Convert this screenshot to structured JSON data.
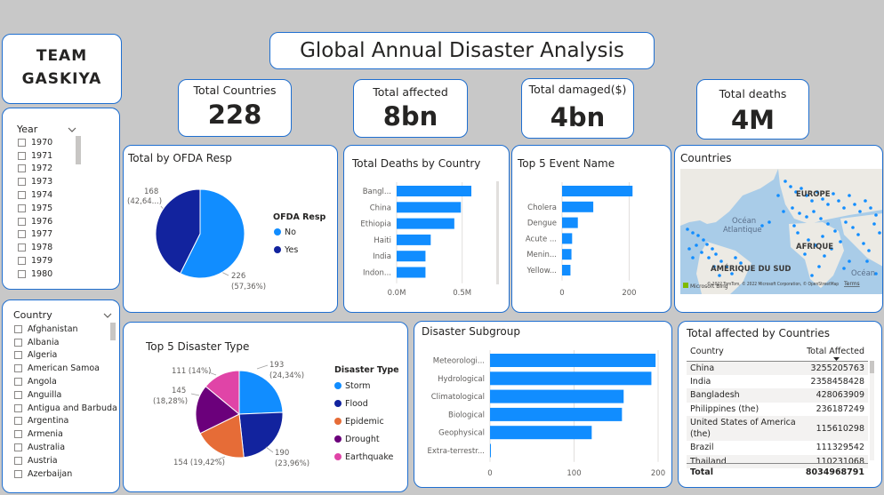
{
  "team": {
    "line1": "TEAM",
    "line2": "GASKIYA"
  },
  "title": "Global Annual Disaster Analysis",
  "kpis": [
    {
      "label": "Total Countries",
      "value": "228"
    },
    {
      "label": "Total affected",
      "value": "8bn"
    },
    {
      "label": "Total damaged($)",
      "value": "4bn"
    },
    {
      "label": "Total deaths",
      "value": "4M"
    }
  ],
  "year_slicer": {
    "header": "Year",
    "items": [
      "1970",
      "1971",
      "1972",
      "1973",
      "1974",
      "1975",
      "1976",
      "1977",
      "1978",
      "1979",
      "1980"
    ]
  },
  "country_slicer": {
    "header": "Country",
    "items": [
      "Afghanistan",
      "Albania",
      "Algeria",
      "American Samoa",
      "Angola",
      "Anguilla",
      "Antigua and Barbuda",
      "Argentina",
      "Armenia",
      "Australia",
      "Austria",
      "Azerbaijan"
    ]
  },
  "colors": {
    "accent": "#118dff",
    "dark_blue": "#12239e",
    "orange": "#e66c37",
    "purple": "#6b007b",
    "pink": "#e044a7",
    "border": "#1f6fd0"
  },
  "ofda": {
    "title": "Total by OFDA Resp",
    "legend_title": "OFDA Resp",
    "legend": [
      "No",
      "Yes"
    ],
    "label_yes_1": "168",
    "label_yes_2": "(42,64...)",
    "label_no_1": "226",
    "label_no_2": "(57,36%)"
  },
  "deaths": {
    "title": "Total Deaths by Country",
    "axis": [
      "0.0M",
      "0.5M"
    ]
  },
  "top5event": {
    "title": "Top 5 Event Name",
    "axis": [
      "0",
      "200"
    ]
  },
  "map": {
    "title": "Countries",
    "labels": {
      "europe": "EUROPE",
      "ocean": "Océan",
      "atlantique": "Atlantique",
      "afrique": "AFRIQUE",
      "amerique": "AMÉRIQUE DU SUD",
      "ocean2": "Océan"
    },
    "bing": "Microsoft Bing",
    "credit": "© 2022 TomTom, © 2022 Microsoft Corporation, © OpenStreetMap",
    "terms": "Terms"
  },
  "disaster_type": {
    "title": "Top 5 Disaster Type",
    "legend_title": "Disaster Type",
    "legend": [
      "Storm",
      "Flood",
      "Epidemic",
      "Drought",
      "Earthquake"
    ],
    "labels": [
      "193",
      "(24,34%)",
      "190",
      "(23,96%)",
      "154 (19,42%)",
      "145",
      "(18,28%)",
      "111 (14%)"
    ]
  },
  "subgroup": {
    "title": "Disaster Subgroup",
    "axis": [
      "0",
      "100",
      "200"
    ]
  },
  "affected_table": {
    "title": "Total affected by Countries",
    "col1": "Country",
    "col2": "Total Affected",
    "rows": [
      {
        "country": "China",
        "value": "3255205763"
      },
      {
        "country": "India",
        "value": "2358458428"
      },
      {
        "country": "Bangladesh",
        "value": "428063909"
      },
      {
        "country": "Philippines (the)",
        "value": "236187249"
      },
      {
        "country": "United States of America",
        "country2": "(the)",
        "value": "115610298"
      },
      {
        "country": "Brazil",
        "value": "111329542"
      },
      {
        "country": "Thailand",
        "value": "110231068"
      }
    ],
    "total_label": "Total",
    "total_value": "8034968791"
  },
  "chart_data": [
    {
      "type": "pie",
      "title": "Total by OFDA Resp",
      "categories": [
        "No",
        "Yes"
      ],
      "values": [
        226,
        168
      ]
    },
    {
      "type": "bar",
      "title": "Total Deaths by Country",
      "categories": [
        "Bangl...",
        "China",
        "Ethiopia",
        "Haiti",
        "India",
        "Indon..."
      ],
      "values": [
        0.57,
        0.49,
        0.44,
        0.26,
        0.22,
        0.22
      ],
      "xlabel": "",
      "ylabel": ""
    },
    {
      "type": "bar",
      "title": "Top 5 Event Name",
      "categories": [
        "",
        "Cholera",
        "Dengue",
        "Acute ...",
        "Menin...",
        "Yellow..."
      ],
      "values": [
        210,
        93,
        47,
        30,
        28,
        25
      ],
      "xlim": [
        0,
        230
      ]
    },
    {
      "type": "pie",
      "title": "Top 5 Disaster Type",
      "categories": [
        "Storm",
        "Flood",
        "Epidemic",
        "Drought",
        "Earthquake"
      ],
      "values": [
        193,
        190,
        154,
        145,
        111
      ]
    },
    {
      "type": "bar",
      "title": "Disaster Subgroup",
      "categories": [
        "Meteorologi...",
        "Hydrological",
        "Climatological",
        "Biological",
        "Geophysical",
        "Extra-terrestr..."
      ],
      "values": [
        197,
        192,
        159,
        157,
        121,
        1
      ],
      "xlim": [
        0,
        200
      ]
    }
  ]
}
